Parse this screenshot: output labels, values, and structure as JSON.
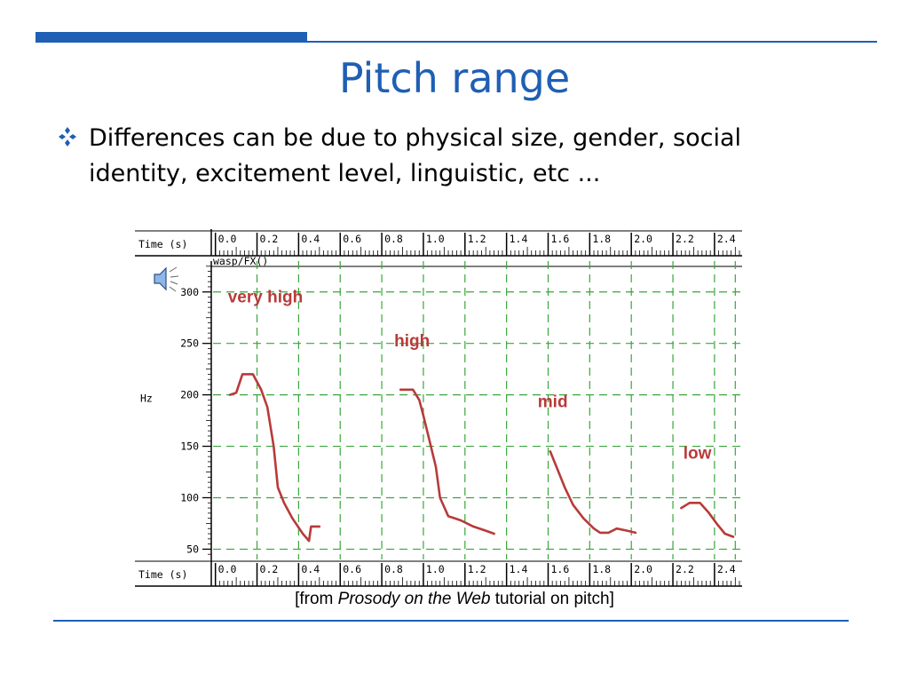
{
  "slide": {
    "title": "Pitch range",
    "bullet": "Differences can be due to physical size, gender, social identity, excitement level, linguistic, etc ...",
    "caption_pre": "[from ",
    "caption_source": "Prosody on the Web",
    "caption_post": " tutorial on pitch]",
    "colors": {
      "accent": "#1f5fb4",
      "title": "#1f5fb4",
      "curve": "#b83a3a",
      "grid": "#3aa63a"
    }
  },
  "chart_data": {
    "type": "line",
    "time_axis_label": "Time (s)",
    "track_label": "wasp/FX()",
    "y_label": "Hz",
    "x_ticks": [
      "0.0",
      "0.2",
      "0.4",
      "0.6",
      "0.8",
      "1.0",
      "1.2",
      "1.4",
      "1.6",
      "1.8",
      "2.0",
      "2.2",
      "2.4"
    ],
    "y_ticks": [
      300,
      250,
      200,
      150,
      100,
      50
    ],
    "xlim": [
      -0.02,
      2.52
    ],
    "ylim": [
      40,
      330
    ],
    "grid": true,
    "speaker_icon": "speaker-icon",
    "series": [
      {
        "name": "very high",
        "label_at": [
          0.06,
          290
        ],
        "points": [
          [
            0.07,
            200
          ],
          [
            0.1,
            202
          ],
          [
            0.13,
            220
          ],
          [
            0.18,
            220
          ],
          [
            0.22,
            205
          ],
          [
            0.25,
            188
          ],
          [
            0.28,
            150
          ],
          [
            0.3,
            110
          ],
          [
            0.33,
            95
          ],
          [
            0.37,
            80
          ],
          [
            0.42,
            65
          ],
          [
            0.45,
            58
          ],
          [
            0.46,
            72
          ],
          [
            0.5,
            72
          ]
        ]
      },
      {
        "name": "high",
        "label_at": [
          0.86,
          247
        ],
        "points": [
          [
            0.89,
            205
          ],
          [
            0.95,
            205
          ],
          [
            0.98,
            195
          ],
          [
            1.0,
            180
          ],
          [
            1.03,
            155
          ],
          [
            1.06,
            130
          ],
          [
            1.08,
            100
          ],
          [
            1.12,
            82
          ],
          [
            1.18,
            78
          ],
          [
            1.24,
            72
          ],
          [
            1.3,
            68
          ],
          [
            1.34,
            65
          ]
        ]
      },
      {
        "name": "mid",
        "label_at": [
          1.55,
          188
        ],
        "points": [
          [
            1.61,
            145
          ],
          [
            1.64,
            130
          ],
          [
            1.68,
            110
          ],
          [
            1.72,
            93
          ],
          [
            1.77,
            80
          ],
          [
            1.82,
            70
          ],
          [
            1.85,
            66
          ],
          [
            1.89,
            66
          ],
          [
            1.93,
            70
          ],
          [
            1.98,
            68
          ],
          [
            2.02,
            66
          ]
        ]
      },
      {
        "name": "low",
        "label_at": [
          2.25,
          138
        ],
        "points": [
          [
            2.24,
            90
          ],
          [
            2.28,
            95
          ],
          [
            2.33,
            95
          ],
          [
            2.37,
            86
          ],
          [
            2.41,
            75
          ],
          [
            2.45,
            65
          ],
          [
            2.49,
            62
          ]
        ]
      }
    ]
  }
}
